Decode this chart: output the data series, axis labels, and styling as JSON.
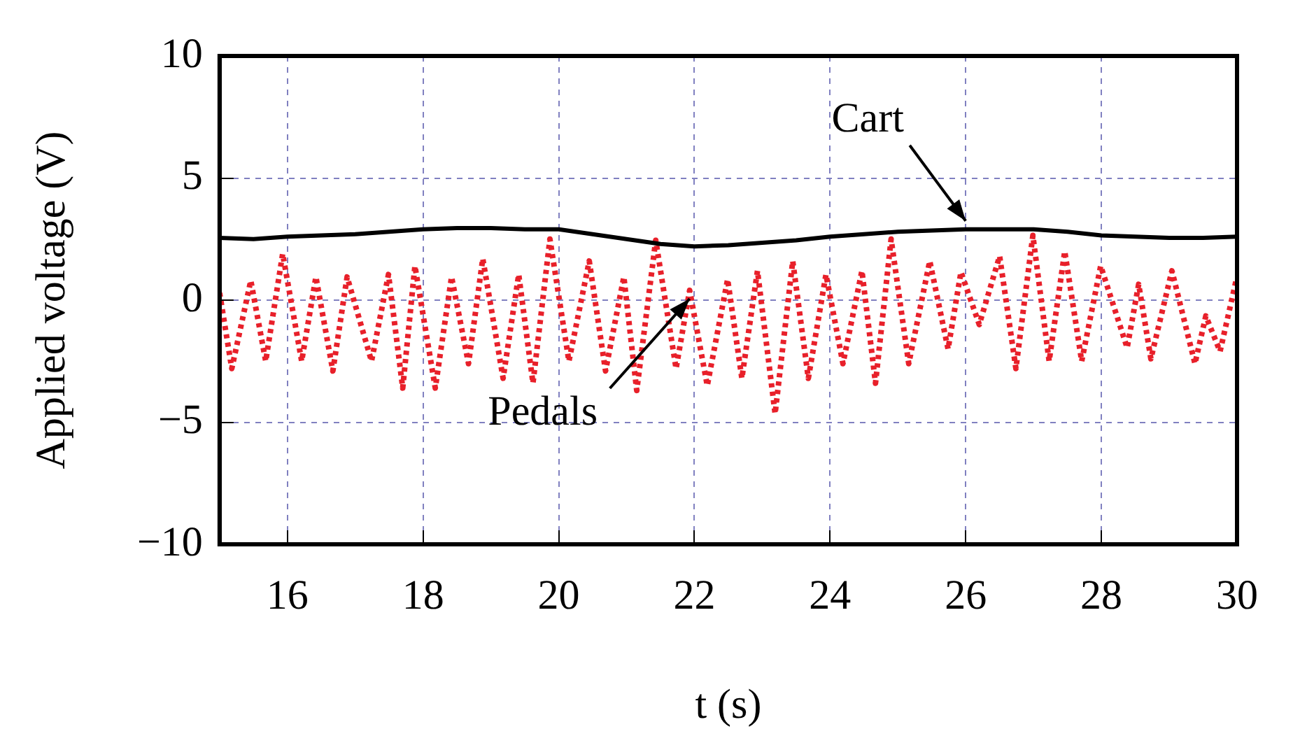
{
  "chart_data": {
    "type": "line",
    "xlabel": "t (s)",
    "ylabel": "Applied voltage (V)",
    "xlim": [
      15,
      30
    ],
    "xticks": [
      16,
      18,
      20,
      22,
      24,
      26,
      28,
      30
    ],
    "ylim": [
      -10,
      10
    ],
    "yticks": [
      {
        "value": -10,
        "label": "−10"
      },
      {
        "value": -5,
        "label": "−5"
      },
      0,
      5,
      10
    ],
    "grid": true,
    "legend": false,
    "marker": "none",
    "series": [
      {
        "name": "Cart",
        "color": "#000000",
        "line_style": "solid",
        "x": [
          15,
          15.5,
          16,
          16.5,
          17,
          17.5,
          18,
          18.5,
          19,
          19.5,
          20,
          20.5,
          21,
          21.5,
          22,
          22.5,
          23,
          23.5,
          24,
          24.5,
          25,
          25.5,
          26,
          26.5,
          27,
          27.5,
          28,
          28.5,
          29,
          29.5,
          30
        ],
        "values": [
          2.55,
          2.5,
          2.6,
          2.65,
          2.7,
          2.8,
          2.9,
          2.95,
          2.95,
          2.9,
          2.9,
          2.7,
          2.5,
          2.3,
          2.2,
          2.25,
          2.35,
          2.45,
          2.6,
          2.7,
          2.8,
          2.85,
          2.9,
          2.9,
          2.9,
          2.8,
          2.65,
          2.6,
          2.55,
          2.55,
          2.6
        ]
      },
      {
        "name": "Pedals",
        "color": "#e8202a",
        "line_style": "dotted",
        "x": [
          15,
          15.18,
          15.46,
          15.68,
          15.93,
          16.21,
          16.42,
          16.67,
          16.88,
          17.24,
          17.49,
          17.7,
          17.88,
          18.18,
          18.42,
          18.67,
          18.88,
          19.18,
          19.41,
          19.62,
          19.87,
          20.15,
          20.45,
          20.69,
          20.96,
          21.15,
          21.43,
          21.73,
          21.93,
          22.19,
          22.49,
          22.7,
          22.93,
          23.19,
          23.45,
          23.68,
          23.94,
          24.19,
          24.47,
          24.67,
          24.9,
          25.16,
          25.47,
          25.74,
          25.93,
          26.2,
          26.5,
          26.74,
          26.99,
          27.23,
          27.46,
          27.71,
          27.99,
          28.38,
          28.55,
          28.73,
          29.04,
          29.38,
          29.54,
          29.75,
          29.99
        ],
        "values": [
          0.3,
          -2.8,
          0.8,
          -2.5,
          1.9,
          -2.5,
          0.95,
          -2.9,
          0.95,
          -2.5,
          1.05,
          -3.6,
          1.4,
          -3.6,
          0.95,
          -2.6,
          1.7,
          -3.2,
          1.05,
          -3.4,
          2.5,
          -2.5,
          1.6,
          -2.9,
          0.95,
          -3.7,
          2.45,
          -2.8,
          0.4,
          -3.5,
          0.85,
          -3.2,
          1.2,
          -4.65,
          1.6,
          -3.2,
          1.05,
          -2.6,
          1.2,
          -3.4,
          2.5,
          -2.6,
          1.6,
          -2,
          1.15,
          -1,
          1.8,
          -2.8,
          2.65,
          -2.5,
          2,
          -2.5,
          1.4,
          -1.95,
          0.65,
          -2.4,
          1.2,
          -2.6,
          -0.65,
          -2.1,
          0.85
        ]
      }
    ]
  }
}
